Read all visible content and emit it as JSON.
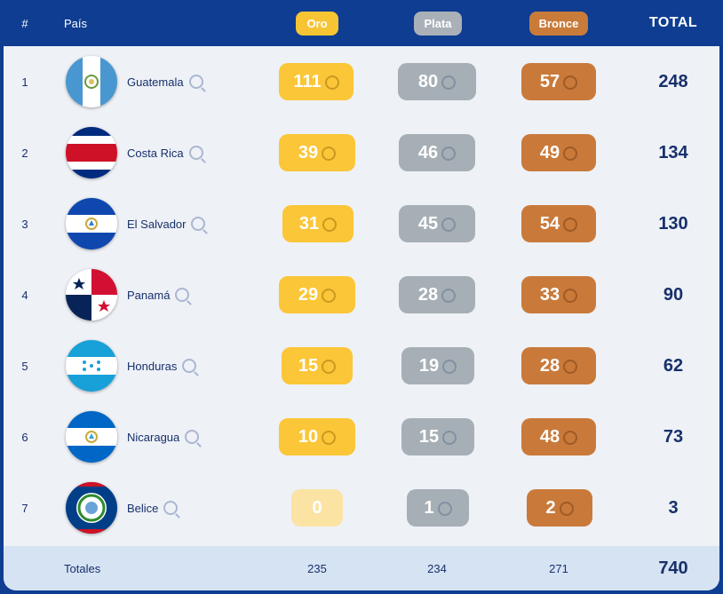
{
  "header": {
    "rank": "#",
    "country": "País",
    "gold": "Oro",
    "silver": "Plata",
    "bronze": "Bronce",
    "total": "TOTAL"
  },
  "colors": {
    "gold": "#fbc637",
    "silver": "#a7afb6",
    "bronze": "#c97a3a",
    "navy": "#17306b"
  },
  "rows": [
    {
      "rank": "1",
      "country": "Guatemala",
      "flag": "guatemala-flag",
      "gold": "111",
      "silver": "80",
      "bronze": "57",
      "total": "248"
    },
    {
      "rank": "2",
      "country": "Costa Rica",
      "flag": "costa-rica-flag",
      "gold": "39",
      "silver": "46",
      "bronze": "49",
      "total": "134"
    },
    {
      "rank": "3",
      "country": "El Salvador",
      "flag": "el-salvador-flag",
      "gold": "31",
      "silver": "45",
      "bronze": "54",
      "total": "130"
    },
    {
      "rank": "4",
      "country": "Panamá",
      "flag": "panama-flag",
      "gold": "29",
      "silver": "28",
      "bronze": "33",
      "total": "90"
    },
    {
      "rank": "5",
      "country": "Honduras",
      "flag": "honduras-flag",
      "gold": "15",
      "silver": "19",
      "bronze": "28",
      "total": "62"
    },
    {
      "rank": "6",
      "country": "Nicaragua",
      "flag": "nicaragua-flag",
      "gold": "10",
      "silver": "15",
      "bronze": "48",
      "total": "73"
    },
    {
      "rank": "7",
      "country": "Belice",
      "flag": "belize-flag",
      "gold": "0",
      "silver": "1",
      "bronze": "2",
      "total": "3"
    }
  ],
  "footer": {
    "label": "Totales",
    "gold": "235",
    "silver": "234",
    "bronze": "271",
    "total": "740"
  }
}
